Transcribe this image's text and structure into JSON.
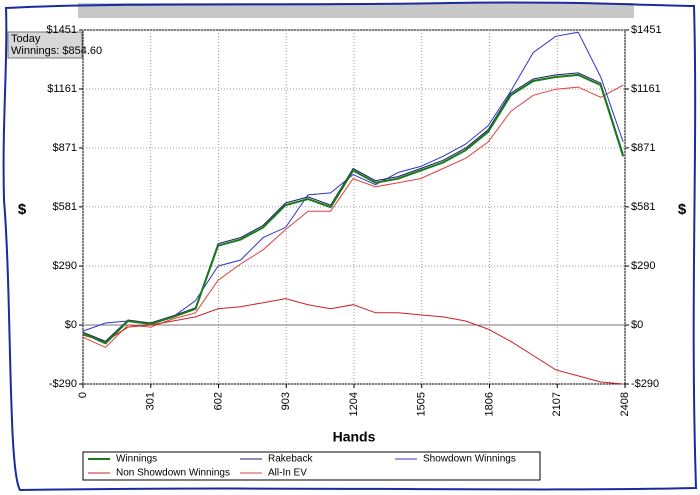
{
  "summary": {
    "title": "Today",
    "text": "Winnings: $854.60"
  },
  "chart_data": {
    "type": "line",
    "xlabel": "Hands",
    "ylabel": "$",
    "y2label": "$",
    "x": [
      0,
      100,
      200,
      300,
      400,
      500,
      600,
      700,
      800,
      900,
      1000,
      1100,
      1200,
      1300,
      1400,
      1500,
      1600,
      1700,
      1800,
      1900,
      2000,
      2100,
      2200,
      2300,
      2400
    ],
    "series": [
      {
        "name": "Winnings",
        "color": "#1a7a1a",
        "values": [
          -40,
          -90,
          20,
          5,
          40,
          80,
          390,
          420,
          480,
          590,
          620,
          580,
          760,
          700,
          720,
          760,
          800,
          860,
          950,
          1130,
          1200,
          1220,
          1230,
          1180,
          830
        ]
      },
      {
        "name": "Rakeback",
        "color": "#1b1b6b",
        "values": [
          -35,
          -80,
          25,
          10,
          45,
          85,
          400,
          430,
          490,
          600,
          630,
          590,
          770,
          710,
          730,
          770,
          810,
          870,
          960,
          1140,
          1210,
          1230,
          1240,
          1190,
          840
        ]
      },
      {
        "name": "Showdown Winnings",
        "color": "#3333cc",
        "values": [
          -30,
          10,
          20,
          10,
          40,
          120,
          290,
          320,
          430,
          480,
          640,
          650,
          740,
          690,
          750,
          780,
          830,
          890,
          980,
          1150,
          1340,
          1420,
          1440,
          1220,
          900
        ]
      },
      {
        "name": "Non Showdown Winnings",
        "color": "#cc2222",
        "values": [
          -50,
          -80,
          -10,
          0,
          20,
          40,
          80,
          90,
          110,
          130,
          100,
          80,
          100,
          60,
          60,
          50,
          40,
          20,
          -20,
          -80,
          -150,
          -220,
          -250,
          -280,
          -290
        ]
      },
      {
        "name": "All-In EV",
        "color": "#e04040",
        "values": [
          -60,
          -110,
          0,
          -10,
          30,
          60,
          220,
          300,
          370,
          470,
          560,
          560,
          720,
          680,
          700,
          720,
          770,
          820,
          900,
          1050,
          1130,
          1160,
          1170,
          1120,
          1180
        ]
      }
    ],
    "xlim": [
      0,
      2408
    ],
    "xticks": [
      0,
      301,
      602,
      903,
      1204,
      1505,
      1806,
      2107,
      2408
    ],
    "ylim": [
      -290,
      1451
    ],
    "yticks": [
      {
        "value": -290,
        "label": "-$290"
      },
      {
        "value": 0,
        "label": "$0"
      },
      {
        "value": 290,
        "label": "$290"
      },
      {
        "value": 581,
        "label": "$581"
      },
      {
        "value": 871,
        "label": "$871"
      },
      {
        "value": 1161,
        "label": "$1161"
      },
      {
        "value": 1451,
        "label": "$1451"
      }
    ],
    "grid": true,
    "legend": "bottom"
  }
}
